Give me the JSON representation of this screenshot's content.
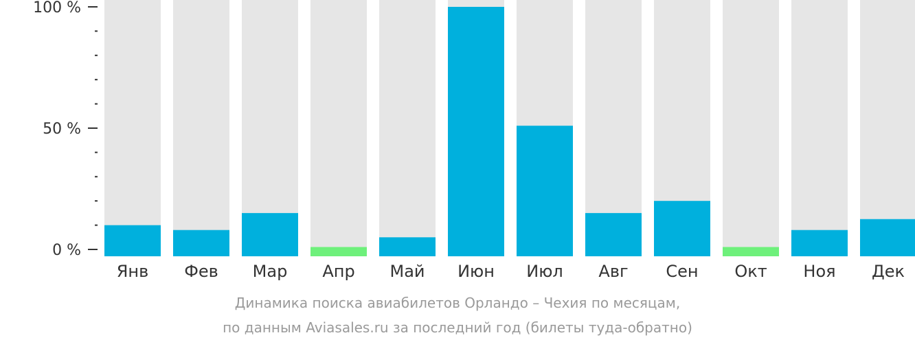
{
  "chart_data": {
    "type": "bar",
    "categories": [
      "Янв",
      "Фев",
      "Мар",
      "Апр",
      "Май",
      "Июн",
      "Июл",
      "Авг",
      "Сен",
      "Окт",
      "Ноя",
      "Дек"
    ],
    "values": [
      10,
      8,
      15,
      1,
      5,
      100,
      51,
      15,
      20,
      1,
      8,
      12.5
    ],
    "highlight_low": [
      "Апр",
      "Окт"
    ],
    "ylim": [
      0,
      100
    ],
    "yticks": [
      {
        "value": 0,
        "label": "0 %"
      },
      {
        "value": 50,
        "label": "50 %"
      },
      {
        "value": 100,
        "label": "100 %"
      }
    ],
    "minor_ticks": [
      10,
      20,
      30,
      40,
      60,
      70,
      80,
      90
    ],
    "grid": false,
    "legend": "none"
  },
  "caption": {
    "line1": "Динамика поиска авиабилетов Орландо – Чехия по месяцам,",
    "line2": "по данным Aviasales.ru за последний год (билеты туда-обратно)"
  },
  "colors": {
    "bar": "#00b0dd",
    "bar_low": "#6ef07b",
    "track": "#e6e6e6",
    "axis_text": "#333333",
    "caption_text": "#9a9a9a"
  }
}
